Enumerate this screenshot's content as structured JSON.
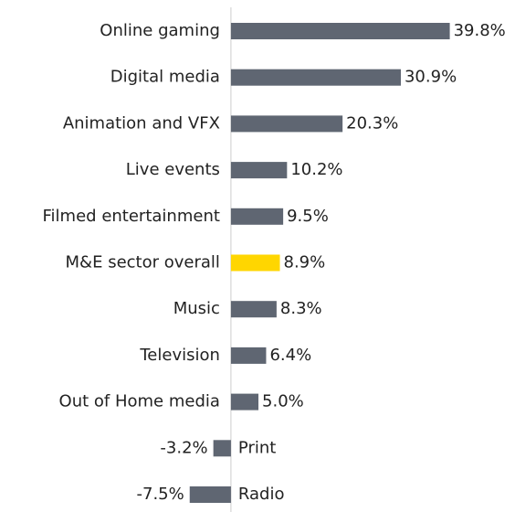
{
  "chart_data": {
    "type": "bar",
    "orientation": "horizontal",
    "categories": [
      "Online gaming",
      "Digital media",
      "Animation and VFX",
      "Live events",
      "Filmed entertainment",
      "M&E sector overall",
      "Music",
      "Television",
      "Out of Home media",
      "Print",
      "Radio"
    ],
    "values": [
      39.8,
      30.9,
      20.3,
      10.2,
      9.5,
      8.9,
      8.3,
      6.4,
      5.0,
      -3.2,
      -7.5
    ],
    "value_labels": [
      "39.8%",
      "30.9%",
      "20.3%",
      "10.2%",
      "9.5%",
      "8.9%",
      "8.3%",
      "6.4%",
      "5.0%",
      "-3.2%",
      "-7.5%"
    ],
    "colors": [
      "#5f6672",
      "#5f6672",
      "#5f6672",
      "#5f6672",
      "#5f6672",
      "#ffd600",
      "#5f6672",
      "#5f6672",
      "#5f6672",
      "#5f6672",
      "#5f6672"
    ],
    "xlim": [
      -42,
      50
    ]
  }
}
